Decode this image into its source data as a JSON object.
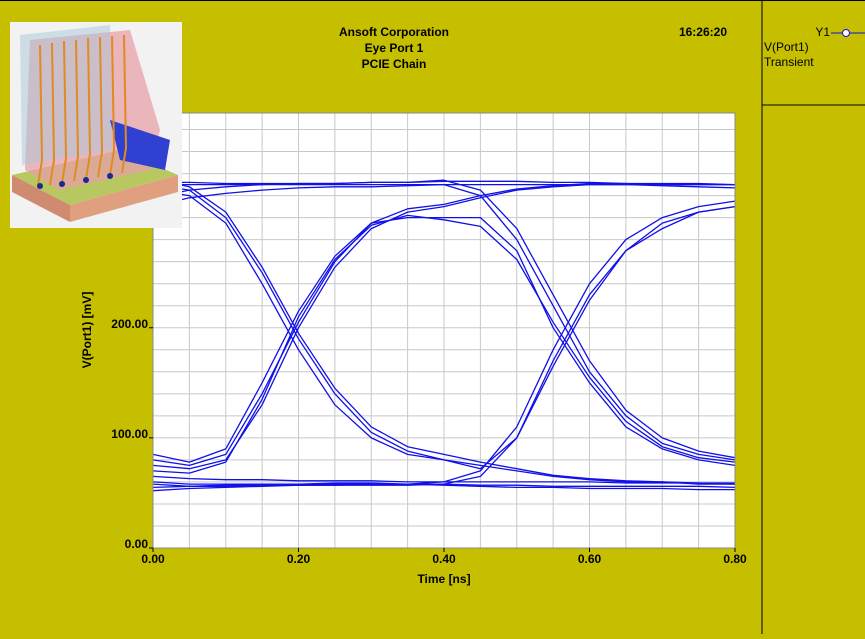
{
  "chart_data": {
    "type": "line",
    "title": [
      "Ansoft Corporation",
      "Eye Port 1",
      "PCIE Chain"
    ],
    "timestamp": "16:26:20",
    "x_label": "Time [ns]",
    "y_label": "V(Port1) [mV]",
    "legend_axis": "Y1",
    "legend_subtitle": "Transient",
    "xlim": [
      0,
      0.8
    ],
    "ylim": [
      0,
      395
    ],
    "xticks": [
      {
        "value": 0,
        "label": "0.00"
      },
      {
        "value": 0.2,
        "label": "0.20"
      },
      {
        "value": 0.4,
        "label": "0.40"
      },
      {
        "value": 0.6,
        "label": "0.60"
      },
      {
        "value": 0.8,
        "label": "0.80"
      }
    ],
    "yticks": [
      {
        "value": 0,
        "label": "0.00"
      },
      {
        "value": 100,
        "label": "100.00"
      },
      {
        "value": 200,
        "label": "200.00"
      }
    ],
    "grid": true,
    "xgrid": [
      0,
      0.05,
      0.1,
      0.15,
      0.2,
      0.25,
      0.3,
      0.35,
      0.4,
      0.45,
      0.5,
      0.55,
      0.6,
      0.65,
      0.7,
      0.75,
      0.8
    ],
    "ygrid": [
      0,
      20,
      40,
      60,
      80,
      100,
      120,
      140,
      160,
      180,
      200,
      220,
      240,
      260,
      280,
      300,
      320,
      340,
      360,
      380
    ],
    "x": [
      0,
      0.05,
      0.1,
      0.15,
      0.2,
      0.25,
      0.3,
      0.35,
      0.4,
      0.45,
      0.5,
      0.55,
      0.6,
      0.65,
      0.7,
      0.75,
      0.8
    ],
    "series": [
      {
        "name": "V(Port1)",
        "color": "#1010e8",
        "traces": [
          [
            330,
            325,
            300,
            250,
            190,
            140,
            105,
            88,
            80,
            75,
            70,
            65,
            62,
            60,
            60,
            58,
            58
          ],
          [
            335,
            328,
            305,
            255,
            195,
            145,
            110,
            92,
            85,
            78,
            72,
            66,
            63,
            61,
            60,
            59,
            58
          ],
          [
            75,
            72,
            80,
            130,
            200,
            255,
            290,
            305,
            310,
            318,
            325,
            328,
            330,
            330,
            330,
            330,
            330
          ],
          [
            85,
            78,
            90,
            150,
            215,
            265,
            295,
            308,
            312,
            320,
            326,
            329,
            331,
            331,
            330,
            330,
            330
          ],
          [
            330,
            330,
            330,
            330,
            330,
            330,
            330,
            330,
            330,
            320,
            280,
            220,
            160,
            120,
            95,
            85,
            80
          ],
          [
            332,
            332,
            331,
            331,
            331,
            331,
            332,
            332,
            334,
            325,
            290,
            230,
            170,
            125,
            100,
            88,
            82
          ],
          [
            60,
            58,
            58,
            58,
            58,
            58,
            58,
            58,
            60,
            70,
            110,
            180,
            240,
            280,
            300,
            310,
            315
          ],
          [
            58,
            56,
            56,
            57,
            57,
            57,
            57,
            57,
            58,
            65,
            100,
            165,
            225,
            270,
            295,
            305,
            310
          ],
          [
            325,
            320,
            295,
            240,
            180,
            130,
            100,
            85,
            80,
            72,
            100,
            170,
            230,
            270,
            290,
            305,
            310
          ],
          [
            80,
            75,
            85,
            140,
            205,
            260,
            295,
            300,
            300,
            300,
            270,
            200,
            150,
            110,
            90,
            80,
            75
          ],
          [
            70,
            68,
            78,
            135,
            210,
            262,
            293,
            302,
            298,
            292,
            262,
            205,
            155,
            115,
            92,
            82,
            78
          ],
          [
            318,
            325,
            328,
            330,
            331,
            331,
            332,
            332,
            333,
            333,
            333,
            332,
            332,
            331,
            331,
            331,
            330
          ],
          [
            310,
            318,
            322,
            325,
            327,
            328,
            328,
            329,
            330,
            330,
            330,
            330,
            330,
            330,
            329,
            328,
            327
          ],
          [
            55,
            56,
            57,
            58,
            58,
            59,
            59,
            58,
            58,
            57,
            57,
            56,
            56,
            56,
            56,
            56,
            55
          ],
          [
            52,
            54,
            55,
            56,
            57,
            57,
            58,
            58,
            57,
            56,
            55,
            55,
            54,
            54,
            54,
            53,
            53
          ],
          [
            65,
            63,
            62,
            62,
            61,
            61,
            61,
            60,
            60,
            60,
            60,
            60,
            60,
            59,
            59,
            59,
            59
          ]
        ]
      }
    ]
  }
}
